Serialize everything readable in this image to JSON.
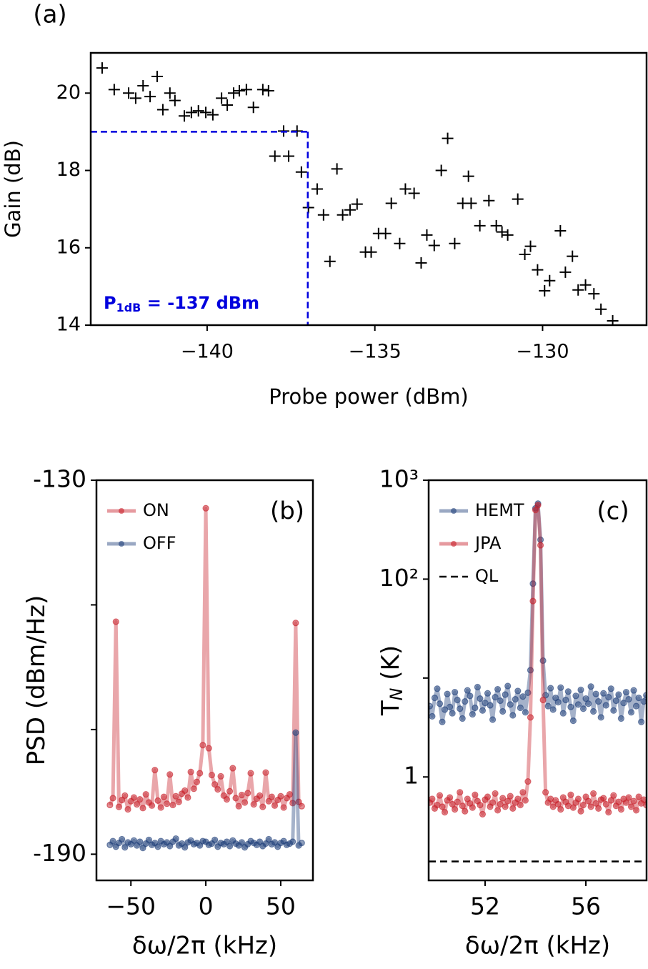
{
  "chart_data": [
    {
      "type": "scatter",
      "panel_label": "(a)",
      "xlabel": "Probe power (dBm)",
      "ylabel": "Gain (dB)",
      "xlim": [
        -143.47,
        -126.9
      ],
      "ylim": [
        14,
        21.04
      ],
      "xticks": [
        {
          "value": -140,
          "label": "−140"
        },
        {
          "value": -135,
          "label": "−135"
        },
        {
          "value": -130,
          "label": "−130"
        }
      ],
      "yticks": [
        14,
        16,
        18,
        20
      ],
      "color": "#000000",
      "x": [
        -143.13,
        -142.77,
        -142.34,
        -142.13,
        -141.91,
        -141.7,
        -141.49,
        -141.32,
        -141.11,
        -140.96,
        -140.68,
        -140.47,
        -140.26,
        -140.04,
        -139.83,
        -139.57,
        -139.4,
        -139.21,
        -139.04,
        -138.83,
        -138.62,
        -138.34,
        -138.17,
        -137.72,
        -137.32,
        -137.98,
        -137.57,
        -137.19,
        -136.98,
        -136.72,
        -136.53,
        -136.34,
        -136.13,
        -135.96,
        -135.74,
        -135.53,
        -135.28,
        -135.11,
        -134.89,
        -134.68,
        -134.51,
        -134.26,
        -134.09,
        -133.83,
        -133.62,
        -133.45,
        -133.23,
        -133.02,
        -132.83,
        -132.62,
        -132.38,
        -132.21,
        -132.13,
        -131.87,
        -131.6,
        -131.38,
        -131.21,
        -131.04,
        -130.74,
        -130.53,
        -130.36,
        -130.15,
        -129.94,
        -129.79,
        -129.47,
        -129.32,
        -129.11,
        -128.94,
        -128.72,
        -128.47,
        -128.26,
        -127.91
      ],
      "values": [
        20.65,
        20.09,
        20.0,
        19.87,
        20.19,
        19.91,
        20.43,
        19.57,
        20.0,
        19.81,
        19.41,
        19.5,
        19.54,
        19.5,
        19.44,
        19.87,
        19.69,
        20.0,
        20.06,
        20.09,
        19.63,
        20.09,
        20.06,
        19.02,
        19.02,
        18.37,
        18.37,
        17.96,
        17.04,
        17.52,
        16.85,
        15.65,
        18.04,
        16.85,
        16.98,
        17.13,
        15.89,
        15.89,
        16.37,
        16.37,
        17.15,
        16.11,
        17.52,
        17.41,
        15.61,
        16.33,
        16.06,
        18.0,
        18.83,
        16.11,
        17.15,
        17.85,
        17.15,
        16.57,
        17.22,
        16.57,
        16.41,
        16.33,
        17.26,
        15.83,
        16.04,
        15.43,
        14.89,
        15.15,
        16.44,
        15.37,
        15.78,
        14.91,
        15.04,
        14.81,
        14.41,
        14.11
      ],
      "threshold": {
        "x": -137,
        "y": 19,
        "color": "#0000dd"
      },
      "annotation": {
        "text": "P",
        "subscript": "1dB",
        "suffix": " = -137 dBm"
      }
    },
    {
      "type": "line",
      "panel_label": "(b)",
      "xlabel": "δω/2π (kHz)",
      "ylabel": "PSD (dBm/Hz)",
      "xlim": [
        -73,
        71.5
      ],
      "ylim": [
        -194.2,
        -130
      ],
      "xticks": [
        {
          "value": -50,
          "label": "−50"
        },
        0,
        50
      ],
      "yticks": [
        -130,
        {
          "value": -150,
          "label": null
        },
        {
          "value": -170,
          "label": null
        },
        -190
      ],
      "legend": "upper left",
      "x": [
        -64,
        -62,
        -60,
        -58,
        -56,
        -54,
        -52,
        -50,
        -48,
        -46,
        -44,
        -42,
        -40,
        -38,
        -36,
        -34,
        -32,
        -30,
        -28,
        -26,
        -24,
        -22,
        -20,
        -18,
        -16,
        -14,
        -12,
        -10,
        -8,
        -6,
        -4,
        -2,
        0,
        2,
        4,
        6,
        8,
        10,
        12,
        14,
        16,
        18,
        20,
        22,
        24,
        26,
        28,
        30,
        32,
        34,
        36,
        38,
        40,
        42,
        44,
        46,
        48,
        50,
        52,
        54,
        56,
        58,
        60,
        62,
        64
      ],
      "series": [
        {
          "name": "ON",
          "color": "#c8202a",
          "values": [
            -182.1,
            -181.0,
            -152.7,
            -182.4,
            -181.3,
            -180.6,
            -182.8,
            -181.5,
            -180.9,
            -182.0,
            -181.2,
            -182.6,
            -180.4,
            -181.7,
            -182.2,
            -176.5,
            -181.4,
            -182.5,
            -180.8,
            -181.9,
            -177.2,
            -182.1,
            -180.7,
            -181.6,
            -180.3,
            -179.8,
            -180.9,
            -176.8,
            -179.5,
            -178.4,
            -177.0,
            -172.5,
            -134.5,
            -173.0,
            -177.3,
            -178.8,
            -179.6,
            -177.5,
            -180.6,
            -181.2,
            -179.9,
            -176.2,
            -181.0,
            -182.3,
            -180.5,
            -181.7,
            -180.2,
            -177.0,
            -182.0,
            -181.1,
            -180.6,
            -182.4,
            -176.9,
            -181.5,
            -180.8,
            -182.2,
            -181.3,
            -180.7,
            -182.5,
            -181.0,
            -180.4,
            -181.8,
            -152.9,
            -181.6,
            -182.3
          ]
        },
        {
          "name": "OFF",
          "color": "#1f3f7a",
          "values": [
            -188.5,
            -187.9,
            -188.8,
            -188.2,
            -187.6,
            -188.9,
            -188.1,
            -188.4,
            -187.8,
            -188.6,
            -188.0,
            -189.0,
            -188.3,
            -187.7,
            -188.5,
            -188.2,
            -188.8,
            -187.9,
            -188.4,
            -188.1,
            -188.7,
            -188.0,
            -187.5,
            -188.6,
            -188.3,
            -188.9,
            -188.1,
            -187.8,
            -188.4,
            -188.2,
            -188.6,
            -187.9,
            -188.0,
            -188.5,
            -188.3,
            -187.7,
            -188.8,
            -188.2,
            -188.4,
            -188.0,
            -188.7,
            -187.8,
            -188.3,
            -188.6,
            -188.1,
            -188.9,
            -188.4,
            -187.9,
            -188.2,
            -188.5,
            -188.0,
            -188.7,
            -188.3,
            -187.6,
            -188.4,
            -188.1,
            -188.8,
            -188.2,
            -187.9,
            -188.5,
            -188.3,
            -188.0,
            -170.5,
            -188.6,
            -188.2
          ]
        }
      ]
    },
    {
      "type": "line",
      "panel_label": "(c)",
      "xlabel": "δω/2π (kHz)",
      "ylabel": "T",
      "ylabel_subscript": "N",
      "ylabel_suffix": " (K)",
      "xlim": [
        49.76,
        58.41
      ],
      "ylim": [
        0.09,
        1000
      ],
      "ylog": true,
      "xticks": [
        52,
        56
      ],
      "yticks": [
        {
          "value": 1000,
          "label": "10³"
        },
        {
          "value": 100,
          "label": "10²"
        },
        {
          "value": 10,
          "label": null
        },
        1
      ],
      "legend": "upper left",
      "x": [
        49.8,
        49.9,
        50.0,
        50.1,
        50.2,
        50.3,
        50.4,
        50.5,
        50.6,
        50.7,
        50.8,
        50.9,
        51.0,
        51.1,
        51.2,
        51.3,
        51.4,
        51.5,
        51.6,
        51.7,
        51.8,
        51.9,
        52.0,
        52.1,
        52.2,
        52.3,
        52.4,
        52.5,
        52.6,
        52.7,
        52.8,
        52.9,
        53.0,
        53.1,
        53.2,
        53.3,
        53.4,
        53.5,
        53.6,
        53.7,
        53.8,
        53.9,
        54.0,
        54.1,
        54.2,
        54.3,
        54.4,
        54.5,
        54.6,
        54.7,
        54.8,
        54.9,
        55.0,
        55.1,
        55.2,
        55.3,
        55.4,
        55.5,
        55.6,
        55.7,
        55.8,
        55.9,
        56.0,
        56.1,
        56.2,
        56.3,
        56.4,
        56.5,
        56.6,
        56.7,
        56.8,
        56.9,
        57.0,
        57.1,
        57.2,
        57.3,
        57.4,
        57.5,
        57.6,
        57.7,
        57.8,
        57.9,
        58.0,
        58.1,
        58.2,
        58.3,
        58.4
      ],
      "series": [
        {
          "name": "HEMT",
          "color": "#1f3f7a",
          "values": [
            5.2,
            4.1,
            6.3,
            7.8,
            5.5,
            3.6,
            4.8,
            6.9,
            5.1,
            4.4,
            7.2,
            6.0,
            4.9,
            3.9,
            5.8,
            7.5,
            6.6,
            4.3,
            5.0,
            8.1,
            6.2,
            4.7,
            5.6,
            7.0,
            5.3,
            3.8,
            6.4,
            7.7,
            5.9,
            4.6,
            6.8,
            8.3,
            5.4,
            4.2,
            6.1,
            7.4,
            5.0,
            6.5,
            4.5,
            7.1,
            12,
            90,
            520,
            580,
            250,
            15,
            6.7,
            5.2,
            7.9,
            4.8,
            6.3,
            5.7,
            8.0,
            4.4,
            6.0,
            7.3,
            5.1,
            3.7,
            6.6,
            5.4,
            7.6,
            4.9,
            6.2,
            5.5,
            8.2,
            4.6,
            6.9,
            5.8,
            4.0,
            7.0,
            5.3,
            6.4,
            7.8,
            4.7,
            5.9,
            6.8,
            3.9,
            5.6,
            7.2,
            6.1,
            4.5,
            7.5,
            5.2,
            6.3,
            3.6,
            5.8,
            6.7
          ]
        },
        {
          "name": "JPA",
          "color": "#c8202a",
          "values": [
            0.55,
            0.6,
            0.48,
            0.52,
            0.65,
            0.5,
            0.44,
            0.58,
            0.62,
            0.53,
            0.47,
            0.56,
            0.7,
            0.51,
            0.45,
            0.6,
            0.54,
            0.49,
            0.66,
            0.57,
            0.52,
            0.42,
            0.59,
            0.63,
            0.5,
            0.55,
            0.68,
            0.46,
            0.53,
            0.61,
            0.5,
            0.57,
            0.64,
            0.48,
            0.55,
            0.6,
            0.52,
            0.7,
            0.58,
            0.9,
            4,
            60,
            500,
            560,
            220,
            6,
            0.7,
            0.55,
            0.6,
            0.5,
            0.58,
            0.53,
            0.47,
            0.62,
            0.56,
            0.51,
            0.66,
            0.49,
            0.55,
            0.6,
            0.45,
            0.52,
            0.63,
            0.57,
            0.5,
            0.68,
            0.54,
            0.48,
            0.59,
            0.61,
            0.53,
            0.44,
            0.58,
            0.65,
            0.51,
            0.56,
            0.47,
            0.6,
            0.55,
            0.62,
            0.5,
            0.57,
            0.46,
            0.63,
            0.54,
            0.59,
            0.52
          ]
        }
      ],
      "reference_lines": [
        {
          "name": "QL",
          "y": 0.14,
          "color": "#000000"
        }
      ]
    }
  ]
}
